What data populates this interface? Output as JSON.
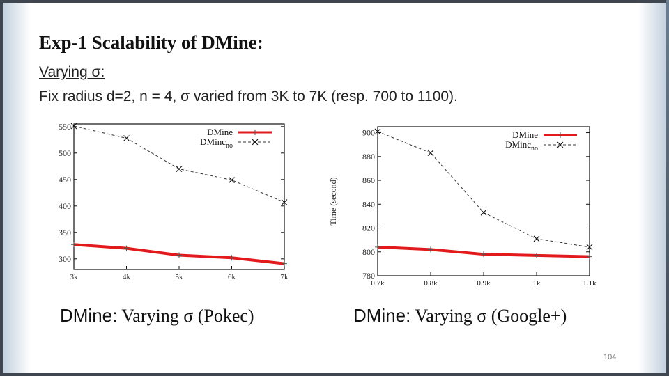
{
  "slide": {
    "title": "Exp-1 Scalability of DMine:",
    "subtitle_label": "Varying σ:",
    "description": "Fix radius d=2, n = 4,  σ varied from 3K to 7K (resp. 700 to 1100).",
    "page_number": "104",
    "colors": {
      "dmine": "#e31a1c",
      "dminc": "#333333",
      "frame": "#3f4650"
    }
  },
  "chart_data": [
    {
      "type": "line",
      "title": "DMine: Varying σ (Pokec)",
      "caption_prefix": "DMine:",
      "caption_rest": "Varying σ (Pokec)",
      "xlabel": "",
      "ylabel": "",
      "categories": [
        "3k",
        "4k",
        "5k",
        "6k",
        "7k"
      ],
      "ylim": [
        280,
        555
      ],
      "yticks": [
        300,
        350,
        400,
        450,
        500,
        550
      ],
      "ytick_labels": [
        "300",
        "350",
        "400",
        "450",
        "500",
        "550"
      ],
      "legend_position": "top-right",
      "series": [
        {
          "name": "DMine",
          "values": [
            327,
            320,
            307,
            302,
            291
          ]
        },
        {
          "name": "DMincno",
          "legend_main": "DMinc",
          "legend_sub": "no",
          "values": [
            551,
            528,
            470,
            449,
            407
          ]
        }
      ]
    },
    {
      "type": "line",
      "title": "DMine: Varying σ (Google+)",
      "caption_prefix": "DMine:",
      "caption_rest": "Varying σ (Google+)",
      "xlabel": "",
      "ylabel": "Time (second)",
      "categories": [
        "0.7k",
        "0.8k",
        "0.9k",
        "1k",
        "1.1k"
      ],
      "ylim": [
        780,
        905
      ],
      "yticks": [
        780,
        800,
        820,
        840,
        860,
        880,
        900
      ],
      "ytick_labels": [
        "780",
        "800",
        "820",
        "840",
        "860",
        "880",
        "900"
      ],
      "legend_position": "top-right",
      "series": [
        {
          "name": "DMine",
          "values": [
            804,
            802,
            798,
            797,
            796
          ]
        },
        {
          "name": "DMincno",
          "legend_main": "DMinc",
          "legend_sub": "no",
          "values": [
            901,
            883,
            833,
            811,
            804
          ]
        }
      ]
    }
  ]
}
